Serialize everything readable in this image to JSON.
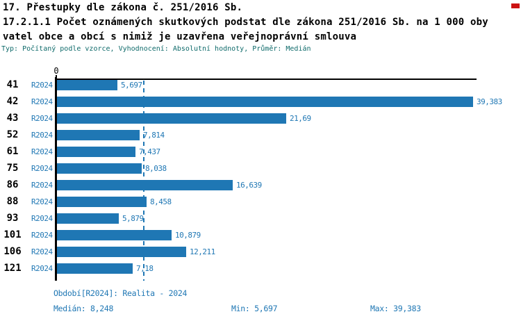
{
  "header": {
    "title_line1": "17. Přestupky dle zákona č. 251/2016 Sb.",
    "title_line2": "17.2.1.1 Počet oznámených skutkových podstat dle zákona 251/2016 Sb. na 1 000 oby",
    "title_line3": "vatel obce a obcí s nimiž je uzavřena veřejnoprávní smlouva",
    "meta": "Typ: Počítaný podle vzorce, Vyhodnocení: Absolutní hodnoty, Průměr: Medián"
  },
  "chart_data": {
    "type": "bar",
    "orientation": "horizontal",
    "title": "17.2.1.1 Počet oznámených skutkových podstat dle zákona 251/2016 Sb. na 1 000 obyvatel obce a obcí s nimiž je uzavřena veřejnoprávní smlouva",
    "categories": [
      "41",
      "42",
      "43",
      "52",
      "61",
      "75",
      "86",
      "88",
      "93",
      "101",
      "106",
      "121"
    ],
    "series_label": "R2024",
    "values": [
      5.697,
      39.383,
      21.69,
      7.814,
      7.437,
      8.038,
      16.639,
      8.458,
      5.879,
      10.879,
      12.211,
      7.18
    ],
    "value_labels": [
      "5,697",
      "39,383",
      "21,69",
      "7,814",
      "7,437",
      "8,038",
      "16,639",
      "8,458",
      "5,879",
      "10,879",
      "12,211",
      "7,18"
    ],
    "x_tick_labels": [
      "0"
    ],
    "xlim": [
      0,
      39.7
    ],
    "median_reference": 8.248,
    "grid": false,
    "legend_position": "none",
    "bar_color": "#1f77b4"
  },
  "footer": {
    "period": "Období[R2024]: Realita - 2024",
    "median": "Medián: 8,248",
    "min": "Min: 5,697",
    "max": "Max: 39,383"
  },
  "colors": {
    "bar_blue": "#1f77b4",
    "label_blue": "#1f77b4",
    "meta_teal": "#0e6a6a",
    "axis_black": "#000000",
    "marker_red": "#cc1111"
  }
}
